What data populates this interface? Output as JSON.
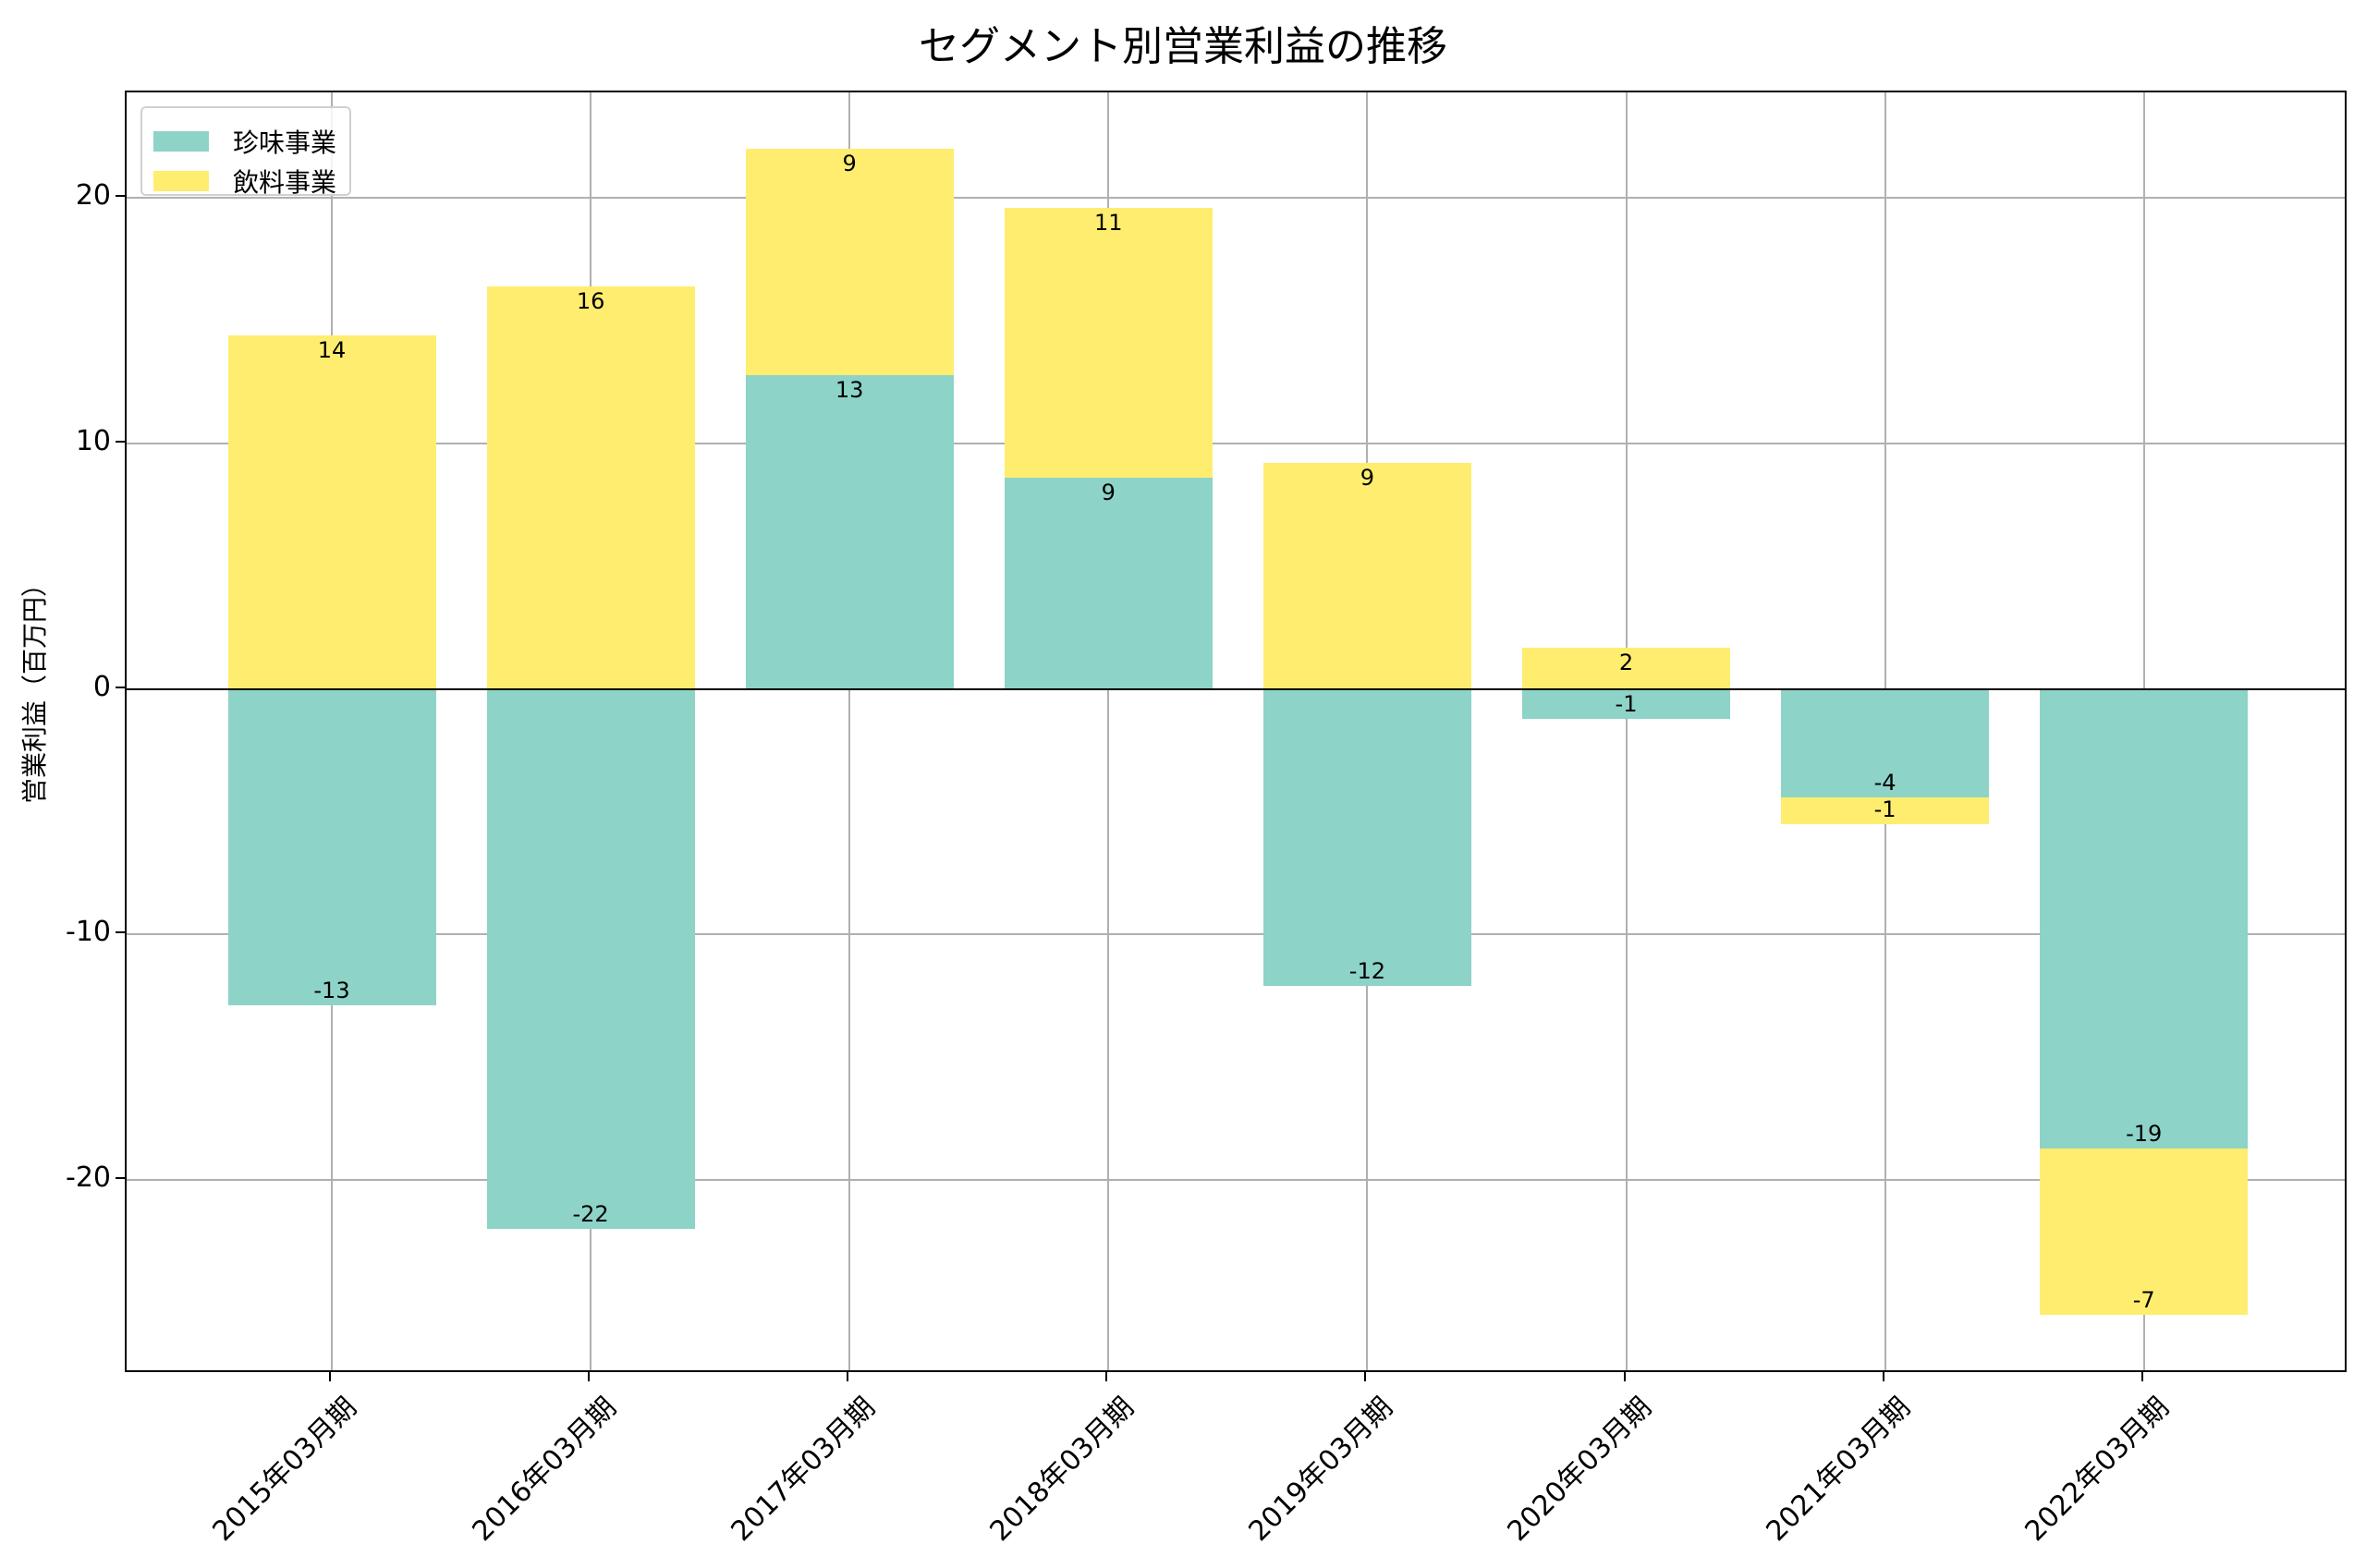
{
  "title": "セグメント別営業利益の推移",
  "ylabel": "営業利益（百万円）",
  "yticks": [
    {
      "label": "20",
      "value": 20
    },
    {
      "label": "10",
      "value": 10
    },
    {
      "label": "0",
      "value": 0
    },
    {
      "label": "-10",
      "value": -10
    },
    {
      "label": "-20",
      "value": -20
    }
  ],
  "legend": [
    {
      "label": "珍味事業",
      "color": "#8dd3c7"
    },
    {
      "label": "飲料事業",
      "color": "#ffed6f"
    }
  ],
  "chart_data": {
    "type": "bar",
    "stacked": true,
    "title": "セグメント別営業利益の推移",
    "xlabel": "",
    "ylabel": "営業利益（百万円）",
    "ylim": [
      -27.9,
      24.3
    ],
    "grid": true,
    "legend_position": "upper left",
    "categories": [
      "2015年03月期",
      "2016年03月期",
      "2017年03月期",
      "2018年03月期",
      "2019年03月期",
      "2020年03月期",
      "2021年03月期",
      "2022年03月期"
    ],
    "series": [
      {
        "name": "珍味事業",
        "color": "#8dd3c7",
        "values": [
          -12.9,
          -22.0,
          12.8,
          8.6,
          -12.1,
          -1.2,
          -4.4,
          -18.7
        ],
        "labels": [
          "-13",
          "-22",
          "13",
          "9",
          "-12",
          "-1",
          "-4",
          "-19"
        ]
      },
      {
        "name": "飲料事業",
        "color": "#ffed6f",
        "values": [
          14.4,
          16.4,
          9.2,
          11.0,
          9.2,
          1.7,
          -1.1,
          -6.8
        ],
        "labels": [
          "14",
          "16",
          "9",
          "11",
          "9",
          "2",
          "-1",
          "-7"
        ]
      }
    ]
  }
}
